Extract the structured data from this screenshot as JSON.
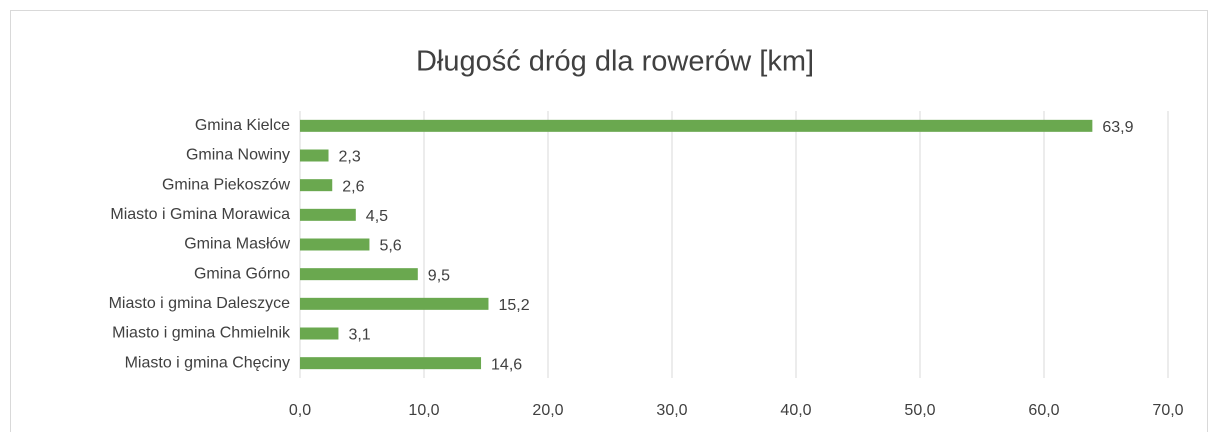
{
  "chart_data": {
    "type": "bar",
    "orientation": "horizontal",
    "title": "Długość dróg dla rowerów [km]",
    "categories": [
      "Gmina Kielce",
      "Gmina Nowiny",
      "Gmina Piekoszów",
      "Miasto i Gmina Morawica",
      "Gmina Masłów",
      "Gmina Górno",
      "Miasto i gmina Daleszyce",
      "Miasto i gmina Chmielnik",
      "Miasto i gmina Chęciny"
    ],
    "values": [
      63.9,
      2.3,
      2.6,
      4.5,
      5.6,
      9.5,
      15.2,
      3.1,
      14.6
    ],
    "value_labels": [
      "63,9",
      "2,3",
      "2,6",
      "4,5",
      "5,6",
      "9,5",
      "15,2",
      "3,1",
      "14,6"
    ],
    "color": "#6aa84f",
    "xlim": [
      0,
      70
    ],
    "xticks": [
      {
        "value": 0,
        "label": "0,0"
      },
      {
        "value": 10,
        "label": "10,0"
      },
      {
        "value": 20,
        "label": "20,0"
      },
      {
        "value": 30,
        "label": "30,0"
      },
      {
        "value": 40,
        "label": "40,0"
      },
      {
        "value": 50,
        "label": "50,0"
      },
      {
        "value": 60,
        "label": "60,0"
      },
      {
        "value": 70,
        "label": "70,0"
      }
    ],
    "grid": true
  }
}
